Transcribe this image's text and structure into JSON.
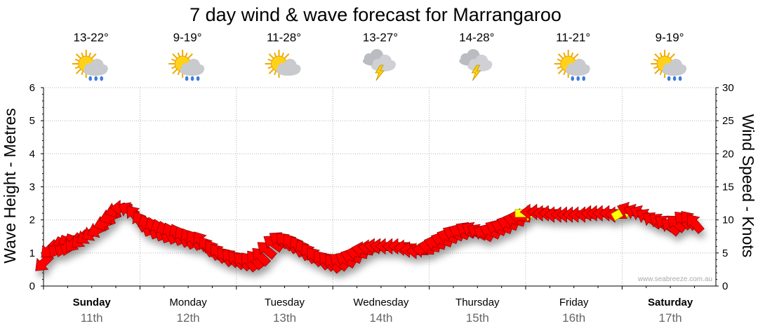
{
  "chart_data": {
    "type": "line",
    "title": "7 day wind & wave forecast for Marrangaroo",
    "ylabel_left": "Wave Height - Metres",
    "ylabel_right": "Wind Speed - Knots",
    "ylim_left": [
      0,
      6
    ],
    "ylim_right": [
      0,
      30
    ],
    "yticks_left": [
      0,
      1,
      2,
      3,
      4,
      5,
      6
    ],
    "yticks_right": [
      0,
      5,
      10,
      15,
      20,
      25,
      30
    ],
    "grid": true,
    "credit": "www.seabreeze.com.au",
    "days": [
      {
        "name": "Sunday",
        "date": "11th",
        "temp": "13-22°",
        "icon": "sun-rain-icon",
        "bold": true
      },
      {
        "name": "Monday",
        "date": "12th",
        "temp": "9-19°",
        "icon": "sun-rain-icon",
        "bold": false
      },
      {
        "name": "Tuesday",
        "date": "13th",
        "temp": "11-28°",
        "icon": "sun-cloud-icon",
        "bold": false
      },
      {
        "name": "Wednesday",
        "date": "14th",
        "temp": "13-27°",
        "icon": "thunderstorm-icon",
        "bold": false
      },
      {
        "name": "Thursday",
        "date": "15th",
        "temp": "14-28°",
        "icon": "thunderstorm-icon",
        "bold": false
      },
      {
        "name": "Friday",
        "date": "16th",
        "temp": "11-21°",
        "icon": "sun-rain-icon",
        "bold": false
      },
      {
        "name": "Saturday",
        "date": "17th",
        "temp": "9-19°",
        "icon": "sun-rain-icon",
        "bold": true
      }
    ],
    "series": [
      {
        "unit": "knots",
        "x_days": [
          0,
          0.06,
          0.13,
          0.19,
          0.25,
          0.31,
          0.38,
          0.44,
          0.5,
          0.56,
          0.63,
          0.69,
          0.75,
          0.81,
          0.88,
          0.94,
          1.0,
          1.06,
          1.13,
          1.19,
          1.25,
          1.31,
          1.38,
          1.44,
          1.5,
          1.56,
          1.63,
          1.69,
          1.75,
          1.81,
          1.88,
          1.94,
          2.0,
          2.06,
          2.13,
          2.19,
          2.25,
          2.31,
          2.38,
          2.44,
          2.5,
          2.56,
          2.63,
          2.69,
          2.75,
          2.81,
          2.88,
          2.94,
          3.0,
          3.06,
          3.13,
          3.19,
          3.25,
          3.31,
          3.38,
          3.44,
          3.5,
          3.56,
          3.63,
          3.69,
          3.75,
          3.81,
          3.88,
          3.94,
          4.0,
          4.06,
          4.13,
          4.19,
          4.25,
          4.31,
          4.38,
          4.44,
          4.5,
          4.56,
          4.63,
          4.69,
          4.75,
          4.81,
          4.88,
          4.94,
          5.0,
          5.06,
          5.13,
          5.19,
          5.25,
          5.31,
          5.38,
          5.44,
          5.5,
          5.56,
          5.63,
          5.69,
          5.75,
          5.81,
          5.88,
          5.94,
          6.0,
          6.06,
          6.13,
          6.19,
          6.25,
          6.31,
          6.38,
          6.44,
          6.5,
          6.56,
          6.63,
          6.69,
          6.75
        ],
        "values": [
          3.5,
          5.5,
          5.8,
          6.0,
          6.2,
          6.5,
          7.0,
          7.5,
          8.0,
          8.5,
          9.5,
          10.5,
          11.5,
          11.8,
          11.5,
          10.8,
          9.8,
          9.2,
          8.8,
          8.5,
          8.2,
          8.0,
          7.8,
          7.5,
          7.2,
          7.0,
          6.8,
          6.0,
          5.5,
          5.0,
          4.5,
          4.3,
          4.0,
          3.8,
          3.7,
          4.0,
          4.5,
          5.5,
          6.5,
          7.0,
          6.8,
          6.5,
          6.0,
          5.5,
          5.0,
          4.5,
          4.0,
          3.8,
          3.5,
          3.7,
          4.0,
          4.5,
          5.0,
          5.5,
          5.8,
          6.0,
          6.0,
          6.0,
          6.0,
          6.0,
          5.8,
          5.5,
          5.3,
          5.5,
          6.0,
          6.5,
          7.0,
          7.5,
          8.0,
          8.2,
          8.5,
          8.5,
          8.2,
          8.0,
          8.3,
          8.8,
          9.0,
          9.5,
          10.0,
          10.5,
          11.0,
          11.2,
          11.2,
          11.0,
          11.0,
          10.8,
          10.8,
          10.8,
          10.8,
          10.8,
          10.8,
          11.0,
          11.0,
          11.0,
          11.0,
          10.8,
          11.2,
          11.5,
          11.2,
          11.0,
          10.5,
          10.0,
          9.8,
          9.5,
          9.0,
          9.5,
          10.0,
          10.0,
          9.5
        ],
        "direction_deg": [
          135,
          135,
          120,
          110,
          110,
          130,
          135,
          145,
          150,
          155,
          160,
          160,
          160,
          180,
          210,
          230,
          240,
          250,
          250,
          250,
          250,
          245,
          245,
          240,
          240,
          235,
          235,
          235,
          235,
          230,
          230,
          225,
          225,
          225,
          230,
          230,
          225,
          220,
          215,
          215,
          225,
          235,
          240,
          240,
          235,
          230,
          230,
          230,
          230,
          220,
          210,
          200,
          190,
          190,
          185,
          185,
          185,
          180,
          180,
          180,
          180,
          180,
          180,
          185,
          190,
          195,
          200,
          200,
          205,
          205,
          210,
          210,
          210,
          210,
          205,
          205,
          200,
          200,
          195,
          190,
          0,
          180,
          180,
          180,
          180,
          180,
          180,
          180,
          180,
          180,
          180,
          180,
          180,
          180,
          180,
          180,
          330,
          200,
          200,
          205,
          210,
          215,
          215,
          215,
          220,
          220,
          225,
          230,
          230
        ],
        "highlight": [
          false,
          false,
          false,
          false,
          false,
          false,
          false,
          false,
          false,
          false,
          false,
          false,
          false,
          false,
          false,
          false,
          false,
          false,
          false,
          false,
          false,
          false,
          false,
          false,
          false,
          false,
          false,
          false,
          false,
          false,
          false,
          false,
          false,
          false,
          false,
          false,
          false,
          false,
          false,
          false,
          false,
          false,
          false,
          false,
          false,
          false,
          false,
          false,
          false,
          false,
          false,
          false,
          false,
          false,
          false,
          false,
          false,
          false,
          false,
          false,
          false,
          false,
          false,
          false,
          false,
          false,
          false,
          false,
          false,
          false,
          false,
          false,
          false,
          false,
          false,
          false,
          false,
          false,
          false,
          false,
          true,
          false,
          false,
          false,
          false,
          false,
          false,
          false,
          false,
          false,
          false,
          false,
          false,
          false,
          false,
          false,
          true,
          false,
          false,
          false,
          false,
          false,
          false,
          false,
          false,
          false,
          false,
          false,
          false
        ]
      }
    ],
    "colors": {
      "arrow": "#ff0000",
      "arrow_edge": "#8b0000",
      "arrow_highlight": "#ffff00",
      "arrow_highlight_edge": "#999900",
      "grid": "#b5b5b5",
      "shadow": "#555555"
    }
  }
}
